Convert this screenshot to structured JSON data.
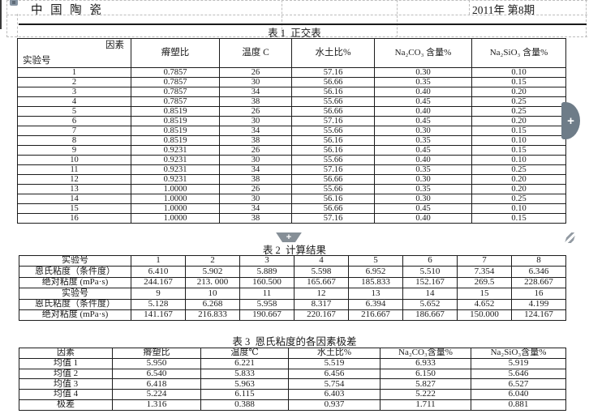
{
  "page": {
    "journal_title": "中 国 陶 瓷",
    "issue": "2011年 第8期"
  },
  "controls": {
    "insert_column_plus": "+",
    "insert_row_plus": "+",
    "control_gray": "#6e7c88",
    "grip_gray": "#939ba3"
  },
  "table1": {
    "caption": "表 1  正交表",
    "corner_top": "因素",
    "corner_bottom": "实验号",
    "columns": [
      "瘠塑比",
      "温度 C",
      "水土比%",
      "Na₂CO₃ 含量%",
      "Na₂SiO₃ 含量%"
    ],
    "rows": [
      [
        "1",
        "0.7857",
        "26",
        "57.16",
        "0.30",
        "0.10"
      ],
      [
        "2",
        "0.7857",
        "30",
        "56.66",
        "0.35",
        "0.15"
      ],
      [
        "3",
        "0.7857",
        "34",
        "56.16",
        "0.40",
        "0.20"
      ],
      [
        "4",
        "0.7857",
        "38",
        "55.66",
        "0.45",
        "0.25"
      ],
      [
        "5",
        "0.8519",
        "26",
        "56.66",
        "0.40",
        "0.25"
      ],
      [
        "6",
        "0.8519",
        "30",
        "57.16",
        "0.45",
        "0.20"
      ],
      [
        "7",
        "0.8519",
        "34",
        "55.66",
        "0.30",
        "0.15"
      ],
      [
        "8",
        "0.8519",
        "38",
        "56.16",
        "0.35",
        "0.10"
      ],
      [
        "9",
        "0.9231",
        "26",
        "56.16",
        "0.45",
        "0.15"
      ],
      [
        "10",
        "0.9231",
        "30",
        "55.66",
        "0.40",
        "0.10"
      ],
      [
        "11",
        "0.9231",
        "34",
        "57.16",
        "0.35",
        "0.25"
      ],
      [
        "12",
        "0.9231",
        "38",
        "56.66",
        "0.30",
        "0.20"
      ],
      [
        "13",
        "1.0000",
        "26",
        "55.66",
        "0.35",
        "0.20"
      ],
      [
        "14",
        "1.0000",
        "30",
        "56.16",
        "0.30",
        "0.25"
      ],
      [
        "15",
        "1.0000",
        "34",
        "56.66",
        "0.45",
        "0.10"
      ],
      [
        "16",
        "1.0000",
        "38",
        "57.16",
        "0.40",
        "0.15"
      ]
    ]
  },
  "table2": {
    "caption": "表 2  计算结果",
    "rows": [
      [
        "实验号",
        "1",
        "2",
        "3",
        "4",
        "5",
        "6",
        "7",
        "8"
      ],
      [
        "恩氏粘度（条件度）",
        "6.410",
        "5.902",
        "5.889",
        "5.598",
        "6.952",
        "5.510",
        "7.354",
        "6.346"
      ],
      [
        "绝对粘度 (mPa·s)",
        "244.167",
        "213. 000",
        "160.500",
        "165.667",
        "185.833",
        "152.167",
        "269.5",
        "228.667"
      ],
      [
        "实验号",
        "9",
        "10",
        "11",
        "12",
        "13",
        "14",
        "15",
        "16"
      ],
      [
        "恩氏粘度（条件度）",
        "5.128",
        "6.268",
        "5.958",
        "8.317",
        "6.394",
        "5.652",
        "4.652",
        "4.199"
      ],
      [
        "绝对粘度 (mPa·s)",
        "141.167",
        "216.833",
        "190.667",
        "220.167",
        "216.667",
        "186.667",
        "150.000",
        "124.167"
      ]
    ]
  },
  "table3": {
    "caption": "表 3  恩氏粘度的各因素极差",
    "columns": [
      "因素",
      "瘠塑比",
      "温度℃",
      "水土比%",
      "Na₂CO₃含量%",
      "Na₂SiO₃含量%"
    ],
    "rows": [
      [
        "均值 1",
        "5.950",
        "6.221",
        "5.519",
        "6.933",
        "5.919"
      ],
      [
        "均值 2",
        "6.540",
        "5.833",
        "6.456",
        "6.150",
        "5.646"
      ],
      [
        "均值 3",
        "6.418",
        "5.963",
        "5.754",
        "5.827",
        "6.527"
      ],
      [
        "均值 4",
        "5.224",
        "6.115",
        "6.403",
        "5.222",
        "6.040"
      ],
      [
        "极差",
        "1.316",
        "0.388",
        "0.937",
        "1.711",
        "0.881"
      ]
    ]
  }
}
